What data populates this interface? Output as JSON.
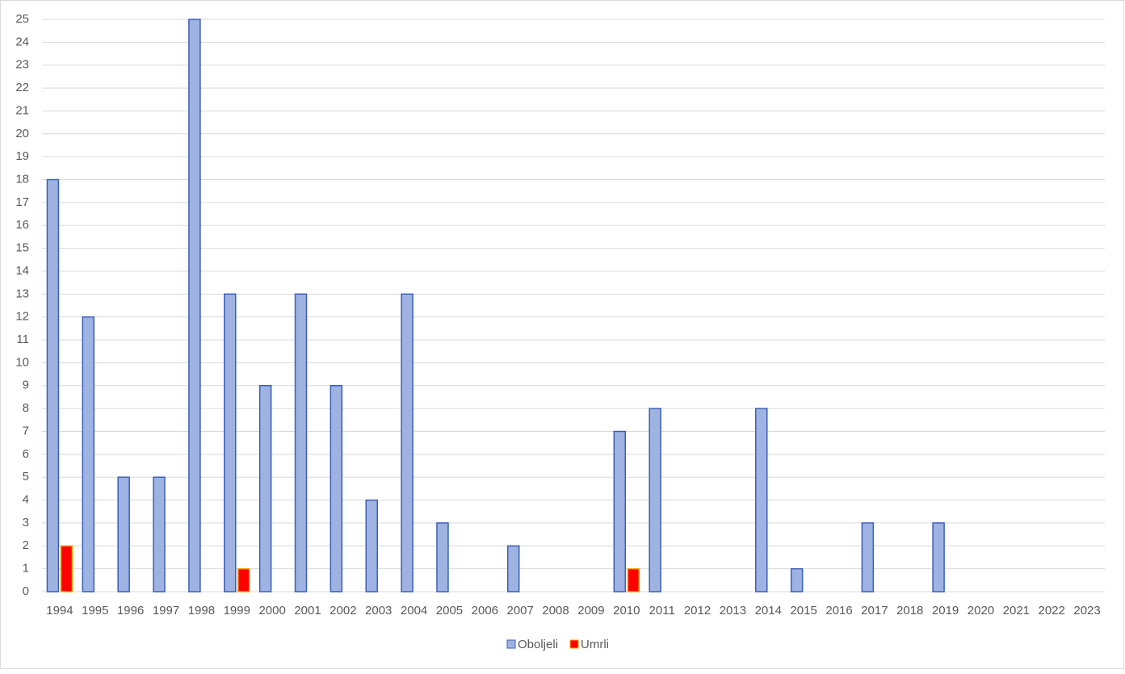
{
  "chart_data": {
    "type": "bar",
    "categories": [
      "1994",
      "1995",
      "1996",
      "1997",
      "1998",
      "1999",
      "2000",
      "2001",
      "2002",
      "2003",
      "2004",
      "2005",
      "2006",
      "2007",
      "2008",
      "2009",
      "2010",
      "2011",
      "2012",
      "2013",
      "2014",
      "2015",
      "2016",
      "2017",
      "2018",
      "2019",
      "2020",
      "2021",
      "2022",
      "2023"
    ],
    "series": [
      {
        "name": "Oboljeli",
        "color": "#9fb3e3",
        "stroke": "#3b5fb5",
        "values": [
          18,
          12,
          5,
          5,
          25,
          13,
          9,
          13,
          9,
          4,
          13,
          3,
          0,
          2,
          0,
          0,
          7,
          8,
          0,
          0,
          8,
          1,
          0,
          3,
          0,
          3,
          0,
          0,
          0,
          0
        ]
      },
      {
        "name": "Umrli",
        "color": "#ff0000",
        "stroke": "#f5a300",
        "values": [
          2,
          0,
          0,
          0,
          0,
          1,
          0,
          0,
          0,
          0,
          0,
          0,
          0,
          0,
          0,
          0,
          1,
          0,
          0,
          0,
          0,
          0,
          0,
          0,
          0,
          0,
          0,
          0,
          0,
          0
        ]
      }
    ],
    "ylim": [
      0,
      25
    ],
    "yticks": [
      0,
      1,
      2,
      3,
      4,
      5,
      6,
      7,
      8,
      9,
      10,
      11,
      12,
      13,
      14,
      15,
      16,
      17,
      18,
      19,
      20,
      21,
      22,
      23,
      24,
      25
    ],
    "grid": true,
    "legend": "bottom"
  }
}
